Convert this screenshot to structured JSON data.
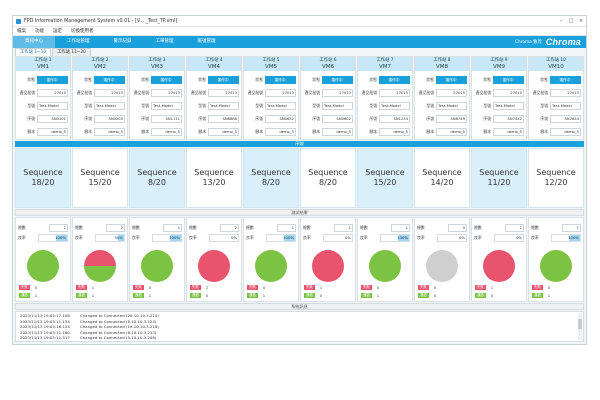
{
  "window": {
    "title": "FPD Information Management System  v0.01  - [V... _Test_TP.xml]",
    "controls": [
      "–",
      "□",
      "×"
    ]
  },
  "menu": [
    "檔案",
    "功能",
    "設定",
    "切換使用者"
  ],
  "nav": {
    "items": [
      "資訊中心",
      "工作站管理",
      "警示記錄",
      "工單管理",
      "帳號管理"
    ],
    "brand_small": "Chroma 致茂",
    "brand_logo": "Chroma"
  },
  "tabs": [
    "工作站 1~10",
    "工作站 11~20"
  ],
  "labels": {
    "status": "狀態",
    "product": "產品批號",
    "model": "型號",
    "serial": "序號",
    "script": "腳本",
    "sequence_band": "序號",
    "result_band": "測試結果",
    "test_count": "總數",
    "yield": "良率",
    "fail": "失敗",
    "pass": "通過",
    "log_band": "系統訊息"
  },
  "stations": [
    {
      "name": "工作站 1",
      "vm": "VM1",
      "status": "運作中",
      "product": "27015",
      "model": "Test-Model",
      "serial": "SN0101",
      "script": "demo_5",
      "seq": "Sequence",
      "progress": "18/20",
      "count": "1",
      "yield": "100%",
      "yield_value": 100,
      "fail": "0",
      "pass": "1",
      "pie_pass_pct": 100
    },
    {
      "name": "工作站 2",
      "vm": "VM2",
      "status": "運作中",
      "product": "27013",
      "model": "Test-Model",
      "serial": "SN0203",
      "script": "demo_5",
      "seq": "Sequence",
      "progress": "15/20",
      "count": "2",
      "yield": "50%",
      "yield_value": 50,
      "fail": "1",
      "pass": "1",
      "pie_pass_pct": 50
    },
    {
      "name": "工作站 3",
      "vm": "VM3",
      "status": "運作中",
      "product": "27013",
      "model": "Test-Model",
      "serial": "SN1111",
      "script": "demo_5",
      "seq": "Sequence",
      "progress": "8/20",
      "count": "1",
      "yield": "100%",
      "yield_value": 100,
      "fail": "0",
      "pass": "1",
      "pie_pass_pct": 100
    },
    {
      "name": "工作站 4",
      "vm": "VM4",
      "status": "運作中",
      "product": "27013",
      "model": "Test-Model",
      "serial": "SN8888",
      "script": "demo_5",
      "seq": "Sequence",
      "progress": "13/20",
      "count": "2",
      "yield": "0%",
      "yield_value": 0,
      "fail": "2",
      "pass": "0",
      "pie_pass_pct": 0
    },
    {
      "name": "工作站 5",
      "vm": "VM5",
      "status": "運作中",
      "product": "27013",
      "model": "Test-Model",
      "serial": "SN0632",
      "script": "demo_5",
      "seq": "Sequence",
      "progress": "8/20",
      "count": "1",
      "yield": "100%",
      "yield_value": 100,
      "fail": "0",
      "pass": "1",
      "pie_pass_pct": 100
    },
    {
      "name": "工作站 6",
      "vm": "VM6",
      "status": "運作中",
      "product": "27013",
      "model": "Test-Model",
      "serial": "SN0602",
      "script": "demo_5",
      "seq": "Sequence",
      "progress": "8/20",
      "count": "1",
      "yield": "0%",
      "yield_value": 0,
      "fail": "1",
      "pass": "0",
      "pie_pass_pct": 0
    },
    {
      "name": "工作站 7",
      "vm": "VM7",
      "status": "運作中",
      "product": "27015",
      "model": "Test-Model",
      "serial": "SN1234",
      "script": "demo_5",
      "seq": "Sequence",
      "progress": "15/20",
      "count": "1",
      "yield": "100%",
      "yield_value": 100,
      "fail": "0",
      "pass": "1",
      "pie_pass_pct": 100
    },
    {
      "name": "工作站 8",
      "vm": "VM8",
      "status": "運作中",
      "product": "27015",
      "model": "Test-Model",
      "serial": "SN8749",
      "script": "demo_5",
      "seq": "Sequence",
      "progress": "14/20",
      "count": "0",
      "yield": "0%",
      "yield_value": 0,
      "fail": "0",
      "pass": "0",
      "pie_pass_pct": null
    },
    {
      "name": "工作站 9",
      "vm": "VM9",
      "status": "運作中",
      "product": "27015",
      "model": "Test-Model",
      "serial": "SN7412",
      "script": "demo_5",
      "seq": "Sequence",
      "progress": "11/20",
      "count": "1",
      "yield": "0%",
      "yield_value": 0,
      "fail": "1",
      "pass": "0",
      "pie_pass_pct": 0
    },
    {
      "name": "工作站 10",
      "vm": "VM10",
      "status": "運作中",
      "product": "27013",
      "model": "Test-Model",
      "serial": "SN7854",
      "script": "demo_5",
      "seq": "Sequence",
      "progress": "12/20",
      "count": "1",
      "yield": "100%",
      "yield_value": 100,
      "fail": "0",
      "pass": "1",
      "pie_pass_pct": 100
    }
  ],
  "colors": {
    "accent": "#1aa0db",
    "pass": "#7cc243",
    "fail": "#e8536e",
    "empty": "#cfcfcf"
  },
  "log": [
    {
      "ts": "2023/11/13  19:05:17.108",
      "msg": "Changed to Connected (20-10.10.3.210)"
    },
    {
      "ts": "2023/11/13  19:05:11.134",
      "msg": "Changed to Connected (8-10.10.3.224)"
    },
    {
      "ts": "2023/11/13  19:05:16.124",
      "msg": "Changed to Connected (19-10.10.3.218)"
    },
    {
      "ts": "2023/11/13  19:05:11.160",
      "msg": "Changed to Connected (6-10.10.3.213)"
    },
    {
      "ts": "2023/11/13  19:05:11.517",
      "msg": "Changed to Connected (5-10.10.3.208)"
    },
    {
      "ts": "2023/11/13  19:05:11.150",
      "msg": "Changed to Connected (3-10.10.3.223)"
    },
    {
      "ts": "2023/11/13  19:05:11.154",
      "msg": "Changed to Connected (1-10.10.3.151)"
    }
  ]
}
